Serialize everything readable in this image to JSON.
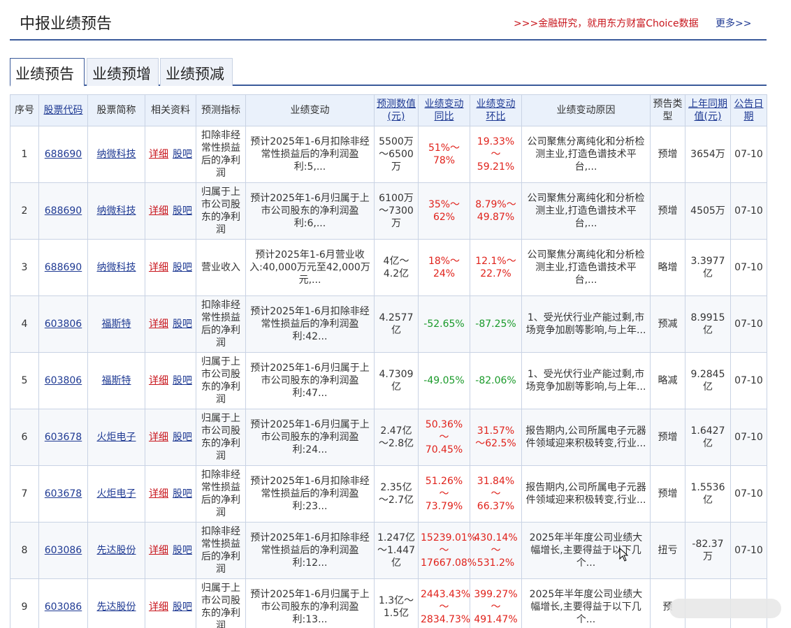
{
  "header": {
    "title": "中报业绩预告",
    "promo": ">>>金融研究，就用东方财富Choice数据",
    "more": "更多>>"
  },
  "tabs": [
    {
      "label": "业绩预告",
      "active": true
    },
    {
      "label": "业绩预增",
      "active": false
    },
    {
      "label": "业绩预减",
      "active": false
    }
  ],
  "table": {
    "columns": {
      "seq": "序号",
      "code": "股票代码",
      "name": "股票简称",
      "related": "相关资料",
      "indicator": "预测指标",
      "change": "业绩变动",
      "forecast": "预测数值(元)",
      "yoy": "业绩变动同比",
      "qoq": "业绩变动环比",
      "reason": "业绩变动原因",
      "type": "预告类型",
      "last_year": "上年同期值(元)",
      "date": "公告日期"
    },
    "detail_label": "详细",
    "forum_label": "股吧",
    "rows": [
      {
        "seq": "1",
        "code": "688690",
        "name": "纳微科技",
        "indicator": "扣除非经常性损益后的净利润",
        "change": "预计2025年1-6月扣除非经常性损益后的净利润盈利:5,...",
        "forecast": "5500万～6500万",
        "yoy": "51%～78%",
        "yoy_dir": "up",
        "qoq": "19.33%～59.21%",
        "qoq_dir": "up",
        "reason": "公司聚焦分离纯化和分析检测主业,打造色谱技术平台,...",
        "type": "预增",
        "last_year": "3654万",
        "date": "07-10"
      },
      {
        "seq": "2",
        "code": "688690",
        "name": "纳微科技",
        "indicator": "归属于上市公司股东的净利润",
        "change": "预计2025年1-6月归属于上市公司股东的净利润盈利:6,...",
        "forecast": "6100万～7300万",
        "yoy": "35%～62%",
        "yoy_dir": "up",
        "qoq": "8.79%～49.87%",
        "qoq_dir": "up",
        "reason": "公司聚焦分离纯化和分析检测主业,打造色谱技术平台,...",
        "type": "预增",
        "last_year": "4505万",
        "date": "07-10"
      },
      {
        "seq": "3",
        "code": "688690",
        "name": "纳微科技",
        "indicator": "营业收入",
        "change": "预计2025年1-6月营业收入:40,000万元至42,000万元,...",
        "forecast": "4亿～4.2亿",
        "yoy": "18%～24%",
        "yoy_dir": "up",
        "qoq": "12.1%～22.7%",
        "qoq_dir": "up",
        "reason": "公司聚焦分离纯化和分析检测主业,打造色谱技术平台,...",
        "type": "略增",
        "last_year": "3.3977亿",
        "date": "07-10"
      },
      {
        "seq": "4",
        "code": "603806",
        "name": "福斯特",
        "indicator": "扣除非经常性损益后的净利润",
        "change": "预计2025年1-6月扣除非经常性损益后的净利润盈利:42...",
        "forecast": "4.2577亿",
        "yoy": "-52.65%",
        "yoy_dir": "down",
        "qoq": "-87.25%",
        "qoq_dir": "down",
        "reason": "1、受光伏行业产能过剩,市场竞争加剧等影响,与上年...",
        "type": "预减",
        "last_year": "8.9915亿",
        "date": "07-10"
      },
      {
        "seq": "5",
        "code": "603806",
        "name": "福斯特",
        "indicator": "归属于上市公司股东的净利润",
        "change": "预计2025年1-6月归属于上市公司股东的净利润盈利:47...",
        "forecast": "4.7309亿",
        "yoy": "-49.05%",
        "yoy_dir": "down",
        "qoq": "-82.06%",
        "qoq_dir": "down",
        "reason": "1、受光伏行业产能过剩,市场竞争加剧等影响,与上年...",
        "type": "略减",
        "last_year": "9.2845亿",
        "date": "07-10"
      },
      {
        "seq": "6",
        "code": "603678",
        "name": "火炬电子",
        "indicator": "归属于上市公司股东的净利润",
        "change": "预计2025年1-6月归属于上市公司股东的净利润盈利:24...",
        "forecast": "2.47亿～2.8亿",
        "yoy": "50.36%～70.45%",
        "yoy_dir": "up",
        "qoq": "31.57%～62.5%",
        "qoq_dir": "up",
        "reason": "报告期内,公司所属电子元器件领域迎来积极转变,行业...",
        "type": "预增",
        "last_year": "1.6427亿",
        "date": "07-10"
      },
      {
        "seq": "7",
        "code": "603678",
        "name": "火炬电子",
        "indicator": "扣除非经常性损益后的净利润",
        "change": "预计2025年1-6月扣除非经常性损益后的净利润盈利:23...",
        "forecast": "2.35亿～2.7亿",
        "yoy": "51.26%～73.79%",
        "yoy_dir": "up",
        "qoq": "31.84%～66.37%",
        "qoq_dir": "up",
        "reason": "报告期内,公司所属电子元器件领域迎来积极转变,行业...",
        "type": "预增",
        "last_year": "1.5536亿",
        "date": "07-10"
      },
      {
        "seq": "8",
        "code": "603086",
        "name": "先达股份",
        "indicator": "扣除非经常性损益后的净利润",
        "change": "预计2025年1-6月扣除非经常性损益后的净利润盈利:12...",
        "forecast": "1.247亿～1.447亿",
        "yoy": "15239.01%～17667.08%",
        "yoy_dir": "up",
        "qoq": "430.14%～531.2%",
        "qoq_dir": "up",
        "reason": "2025年半年度公司业绩大幅增长,主要得益于以下几个...",
        "type": "扭亏",
        "last_year": "-82.37万",
        "date": "07-10"
      },
      {
        "seq": "9",
        "code": "603086",
        "name": "先达股份",
        "indicator": "归属于上市公司股东的净利润",
        "change": "预计2025年1-6月归属于上市公司股东的净利润盈利:13...",
        "forecast": "1.3亿～1.5亿",
        "yoy": "2443.43%～2834.73%",
        "yoy_dir": "up",
        "qoq": "399.27%～491.47%",
        "qoq_dir": "up",
        "reason": "2025年半年度公司业绩大幅增长,主要得益于以下几个...",
        "type": "预",
        "last_year": "",
        "date": ""
      }
    ]
  }
}
